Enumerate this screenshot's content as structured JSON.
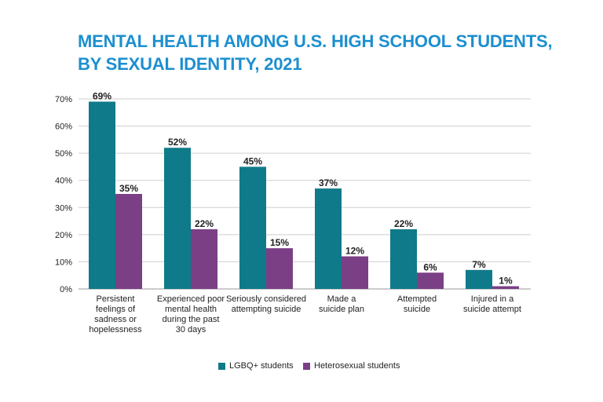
{
  "title_lines": [
    "MENTAL HEALTH AMONG U.S. HIGH SCHOOL STUDENTS,",
    "BY SEXUAL IDENTITY, 2021"
  ],
  "colors": {
    "title": "#1c8fcf",
    "lgbq": "#0f7a8a",
    "hetero": "#7b3f86"
  },
  "chart_data": {
    "type": "bar",
    "title": "MENTAL HEALTH AMONG U.S. HIGH SCHOOL STUDENTS, BY SEXUAL IDENTITY, 2021",
    "categories": [
      [
        "Persistent",
        "feelings of",
        "sadness or",
        "hopelessness"
      ],
      [
        "Experienced poor",
        "mental health",
        "during the past",
        "30 days"
      ],
      [
        "Seriously considered",
        "attempting suicide"
      ],
      [
        "Made a",
        "suicide plan"
      ],
      [
        "Attempted",
        "suicide"
      ],
      [
        "Injured in a",
        "suicide attempt"
      ]
    ],
    "series": [
      {
        "name": "LGBQ+ students",
        "values": [
          69,
          52,
          45,
          37,
          22,
          7
        ],
        "labels": [
          "69%",
          "52%",
          "45%",
          "37%",
          "22%",
          "7%"
        ]
      },
      {
        "name": "Heterosexual students",
        "values": [
          35,
          22,
          15,
          12,
          6,
          1
        ],
        "labels": [
          "35%",
          "22%",
          "15%",
          "12%",
          "6%",
          "1%"
        ]
      }
    ],
    "yticks": [
      0,
      10,
      20,
      30,
      40,
      50,
      60,
      70
    ],
    "ytick_labels": [
      "0%",
      "10%",
      "20%",
      "30%",
      "40%",
      "50%",
      "60%",
      "70%"
    ],
    "ylim": [
      0,
      70
    ],
    "grid": true,
    "legend_position": "bottom-center"
  }
}
